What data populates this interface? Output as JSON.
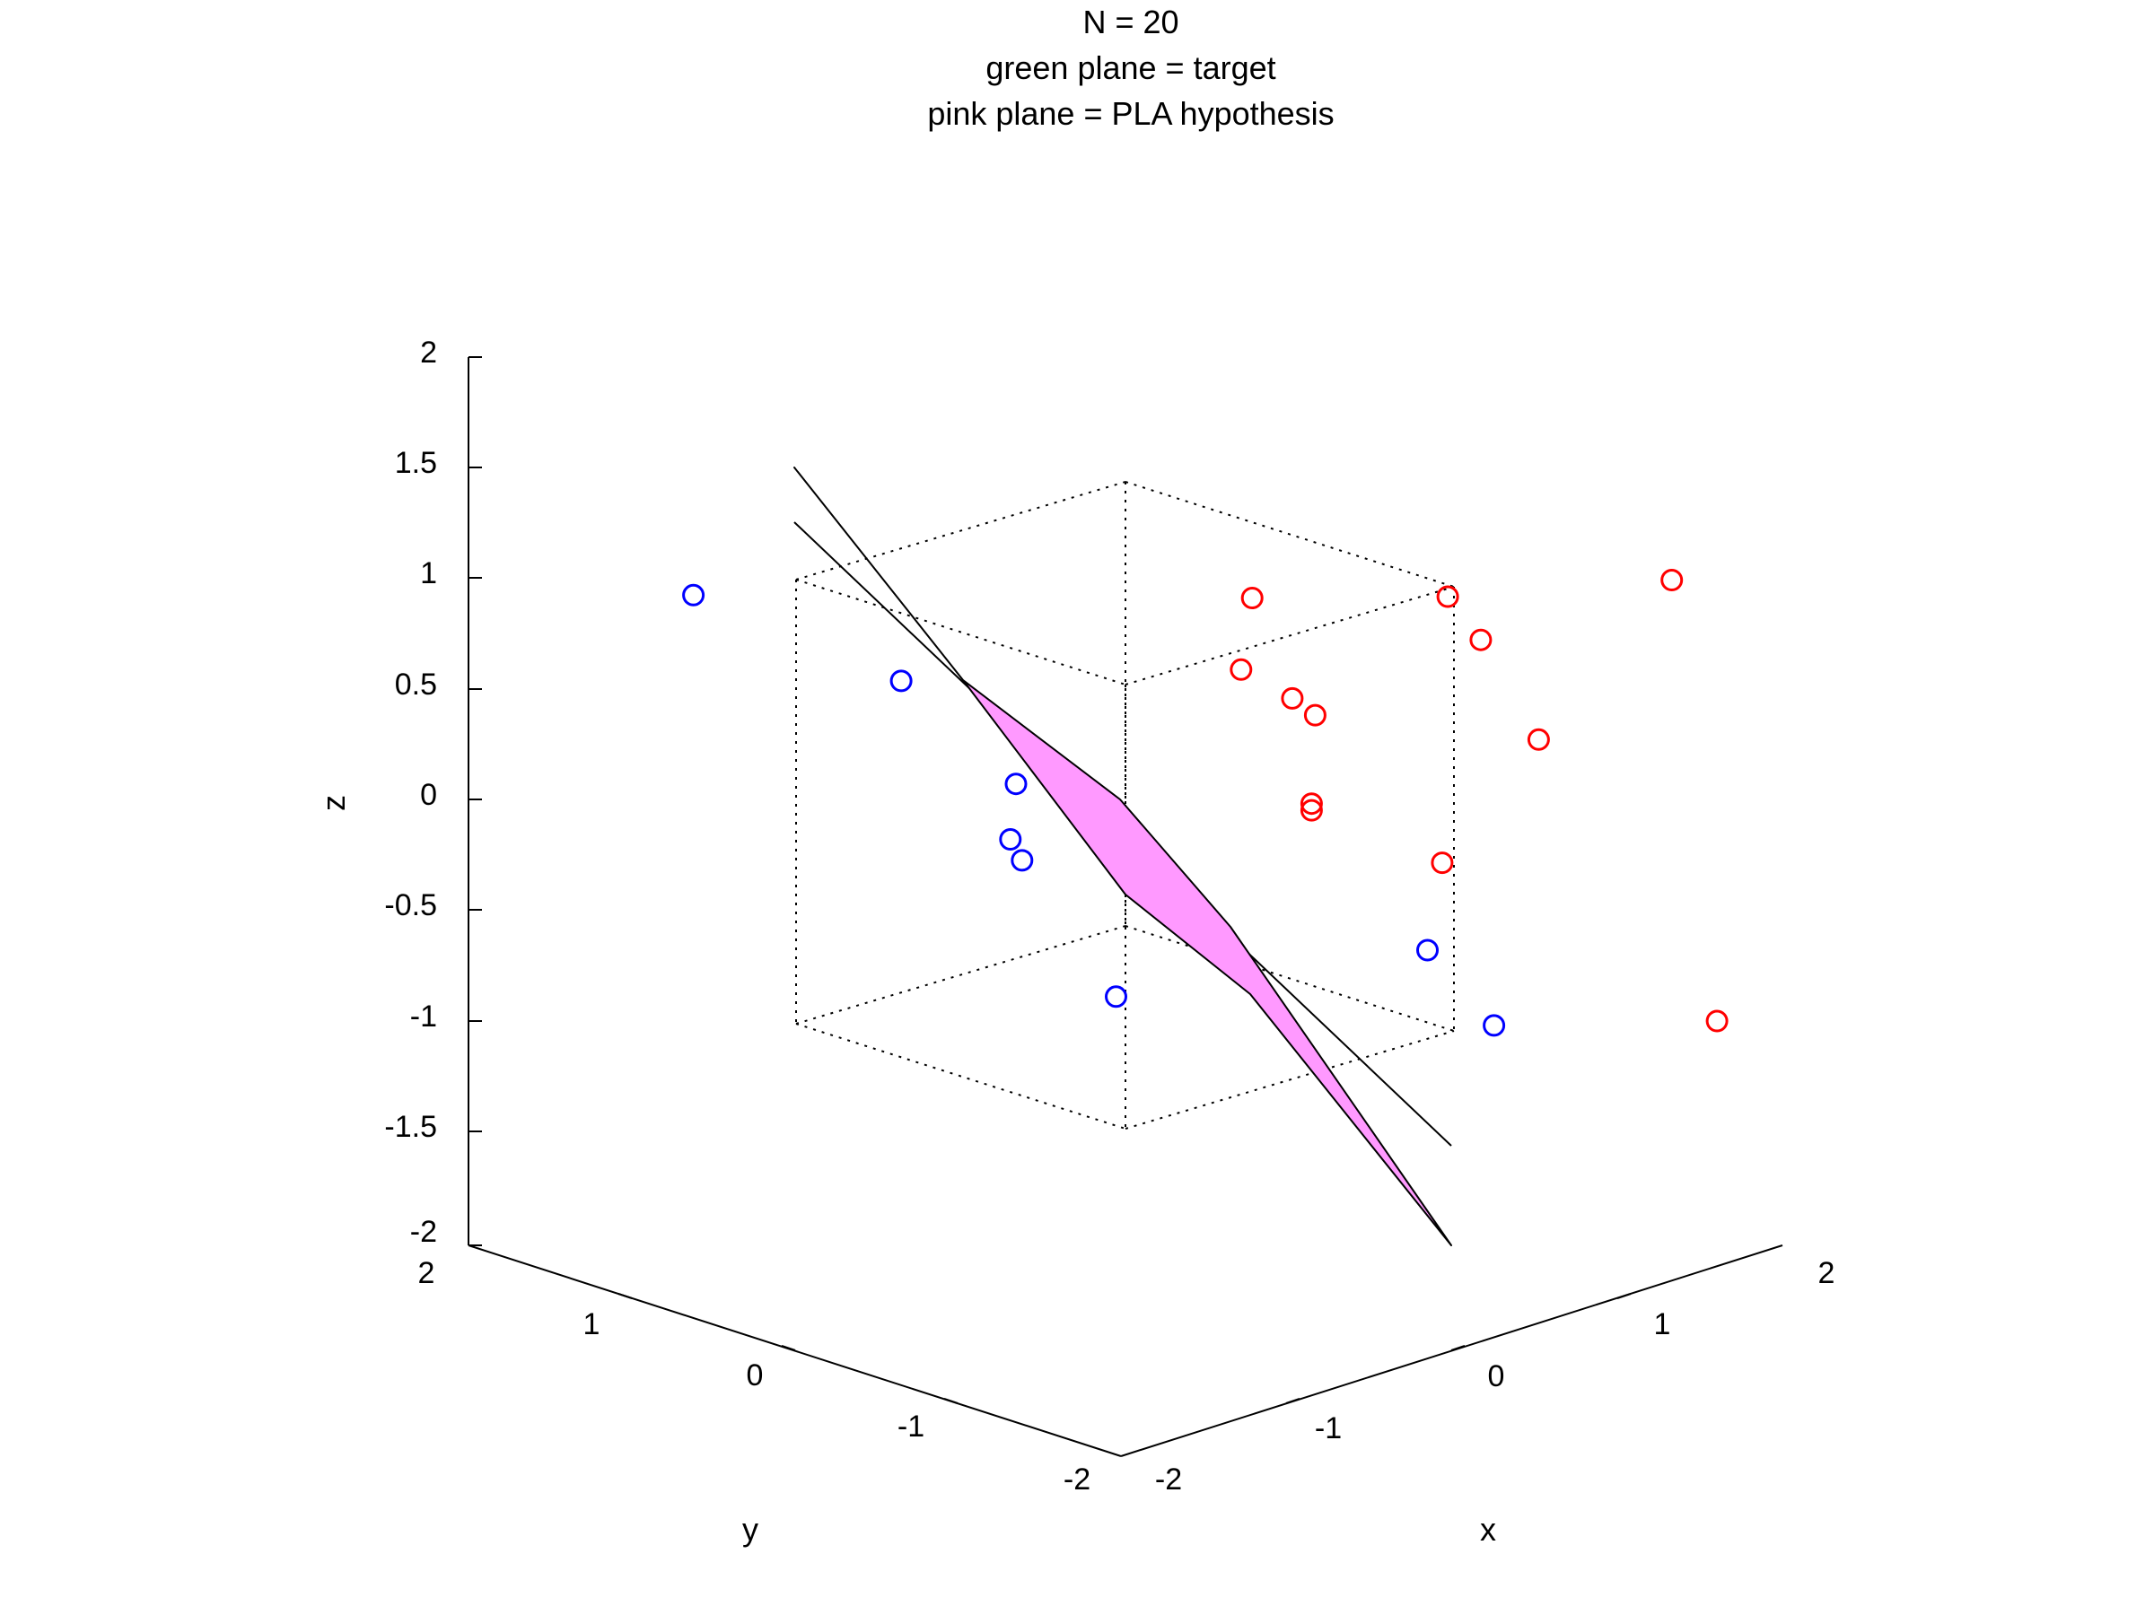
{
  "chart_data": {
    "type": "scatter",
    "dimensions": 3,
    "title": [
      "N = 20",
      "green plane = target",
      "pink plane = PLA hypothesis"
    ],
    "xlabel": "x",
    "ylabel": "y",
    "zlabel": "z",
    "xlim": [
      -2,
      2
    ],
    "ylim": [
      -2,
      2
    ],
    "zlim": [
      -2,
      2
    ],
    "xticks": [
      "-2",
      "-1",
      "0",
      "1",
      "2"
    ],
    "yticks": [
      "-2",
      "-1",
      "0",
      "1",
      "2"
    ],
    "zticks": [
      "-2",
      "-1.5",
      "-1",
      "-0.5",
      "0",
      "0.5",
      "1",
      "1.5",
      "2"
    ],
    "grid": false,
    "legend": "none",
    "data_region_box": "dotted cube from -1 to 1 on each axis",
    "series": [
      {
        "color": "#ff0000",
        "marker": "circle-open",
        "points_projected": [
          [
            1.223,
            0.909
          ],
          [
            1.608,
            0.915
          ],
          [
            2.049,
            0.99
          ],
          [
            1.673,
            0.72
          ],
          [
            1.201,
            0.586
          ],
          [
            1.302,
            0.456
          ],
          [
            1.347,
            0.38
          ],
          [
            1.787,
            0.27
          ],
          [
            1.34,
            -0.019
          ],
          [
            1.34,
            -0.049
          ],
          [
            1.597,
            -0.286
          ],
          [
            2.138,
            -1.0
          ]
        ]
      },
      {
        "color": "#0000ff",
        "marker": "circle-open",
        "points_projected": [
          [
            0.123,
            0.922
          ],
          [
            0.532,
            0.535
          ],
          [
            0.758,
            0.07
          ],
          [
            0.747,
            -0.18
          ],
          [
            0.77,
            -0.275
          ],
          [
            1.568,
            -0.68
          ],
          [
            0.955,
            -0.89
          ],
          [
            1.699,
            -1.02
          ]
        ]
      }
    ],
    "planes": [
      {
        "name": "target",
        "color": "#00cc00",
        "seen_edge_on": true
      },
      {
        "name": "PLA hypothesis",
        "color": "#ff99ff"
      }
    ]
  },
  "colors": {
    "class_pos": "#ff0000",
    "class_neg": "#0000ff",
    "hypothesis_fill": "#ff99ff",
    "axes": "#000000",
    "background": "#ffffff"
  }
}
